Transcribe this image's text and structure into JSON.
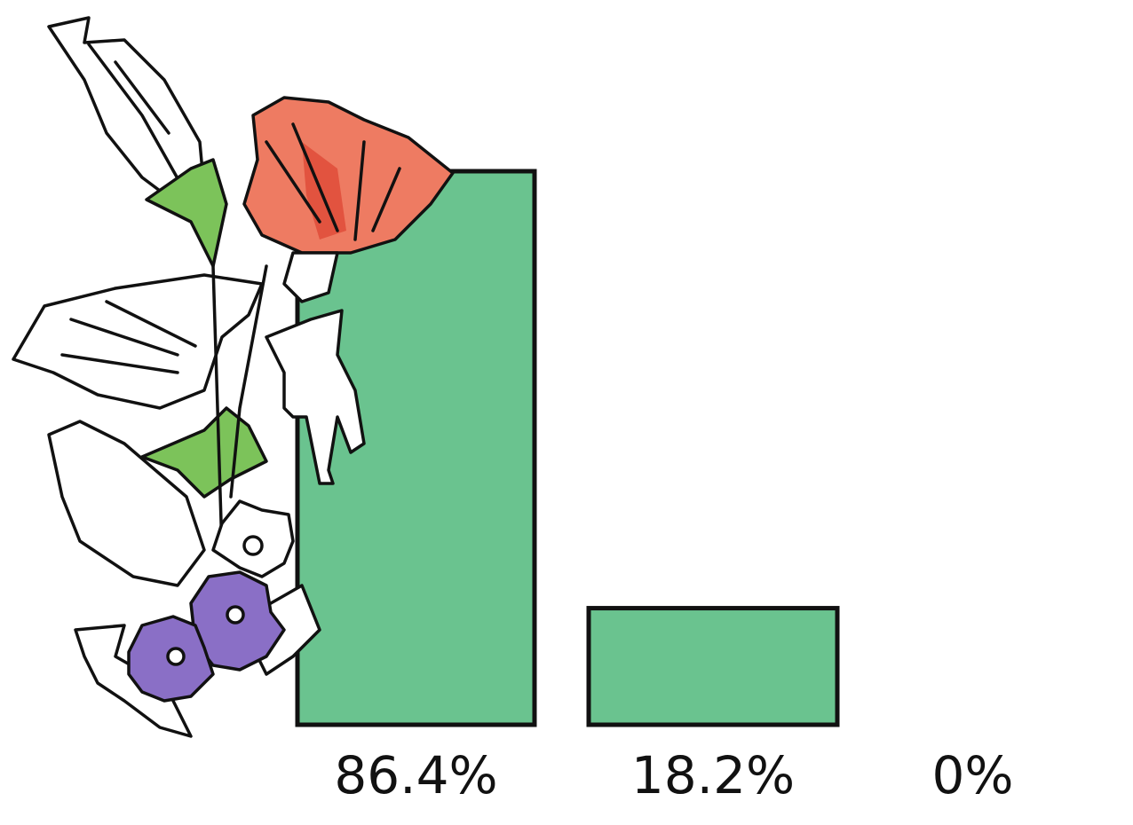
{
  "chart_data": {
    "type": "bar",
    "values": [
      86.4,
      18.2,
      0
    ],
    "value_labels": [
      "86.4%",
      "18.2%",
      "0%"
    ],
    "color": "#6ac38f"
  }
}
